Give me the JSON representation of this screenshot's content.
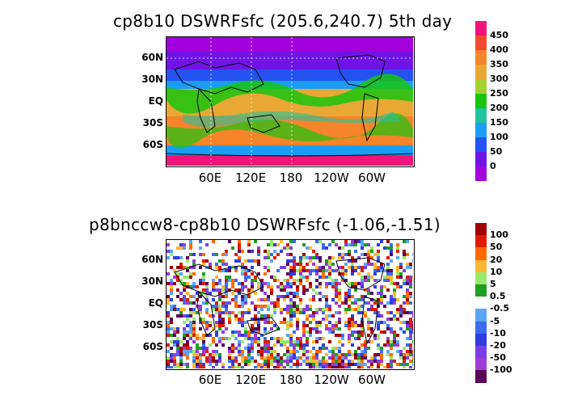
{
  "panels": [
    {
      "title": "cp8b10 DSWRFsfc (205.6,240.7) 5th day",
      "lat_labels": [
        "60N",
        "30N",
        "EQ",
        "30S",
        "60S"
      ],
      "lon_labels": [
        "60E",
        "120E",
        "180",
        "120W",
        "60W"
      ],
      "colorbar": {
        "labels": [
          "450",
          "400",
          "350",
          "300",
          "250",
          "200",
          "150",
          "100",
          "50",
          "0"
        ],
        "colors": [
          "#f0147a",
          "#f24a2e",
          "#f5842a",
          "#e8a833",
          "#a3d130",
          "#19c40f",
          "#1fc3a0",
          "#1a9ef5",
          "#2452f0",
          "#7014e6",
          "#a200dc"
        ]
      }
    },
    {
      "title": "p8bnccw8-cp8b10 DSWRFsfc (-1.06,-1.51)",
      "lat_labels": [
        "60N",
        "30N",
        "EQ",
        "30S",
        "60S"
      ],
      "lon_labels": [
        "60E",
        "120E",
        "180",
        "120W",
        "60W"
      ],
      "colorbar": {
        "labels": [
          "100",
          "50",
          "20",
          "10",
          "5",
          "0.5",
          "-0.5",
          "-5",
          "-10",
          "-20",
          "-50",
          "-100"
        ],
        "colors": [
          "#a10000",
          "#e01a00",
          "#ff6a00",
          "#ffb830",
          "#98e86a",
          "#1f9e1f",
          "#ffffff",
          "#5aa5f5",
          "#3a6df0",
          "#2f3ee0",
          "#7a3ee6",
          "#a03cd8",
          "#58005a"
        ]
      }
    }
  ]
}
